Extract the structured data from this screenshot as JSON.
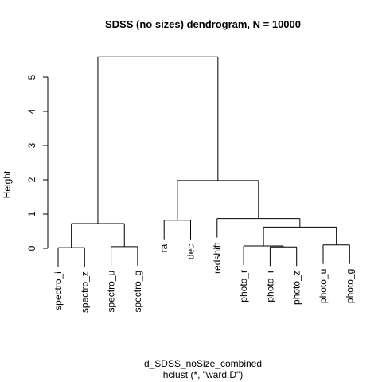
{
  "chart_data": {
    "type": "dendrogram",
    "title": "SDSS (no sizes) dendrogram, N = 10000",
    "ylabel": "Height",
    "xlabel": "d_SDSS_noSize_combined",
    "sublabel": "hclust (*, \"ward.D\")",
    "ylim": [
      0,
      5.9
    ],
    "yticks": [
      0,
      1,
      2,
      3,
      4,
      5
    ],
    "leaves": [
      "spectro_i",
      "spectro_z",
      "spectro_u",
      "spectro_g",
      "ra",
      "dec",
      "redshift",
      "photo_r",
      "photo_i",
      "photo_z",
      "photo_u",
      "photo_g"
    ],
    "merges": [
      {
        "a": "photo_i",
        "b": "photo_z",
        "height": 0.04
      },
      {
        "a": "spectro_i",
        "b": "spectro_z",
        "height": 0.02
      },
      {
        "a": "spectro_u",
        "b": "spectro_g",
        "height": 0.05
      },
      {
        "a": "photo_u",
        "b": "photo_g",
        "height": 0.1
      },
      {
        "a": "photo_r",
        "b": "(photo_i,photo_z)",
        "height": 0.07
      },
      {
        "a": "(photo_r,photo_i,photo_z)",
        "b": "(photo_u,photo_g)",
        "height": 0.62
      },
      {
        "a": "ra",
        "b": "dec",
        "height": 0.82
      },
      {
        "a": "spectro(i,z)",
        "b": "spectro(u,g)",
        "height": 0.72
      },
      {
        "a": "redshift",
        "b": "photo cluster",
        "height": 0.87
      },
      {
        "a": "(ra,dec)",
        "b": "(redshift,photo)",
        "height": 1.98
      },
      {
        "a": "spectro cluster",
        "b": "rest",
        "height": 5.6
      }
    ]
  }
}
